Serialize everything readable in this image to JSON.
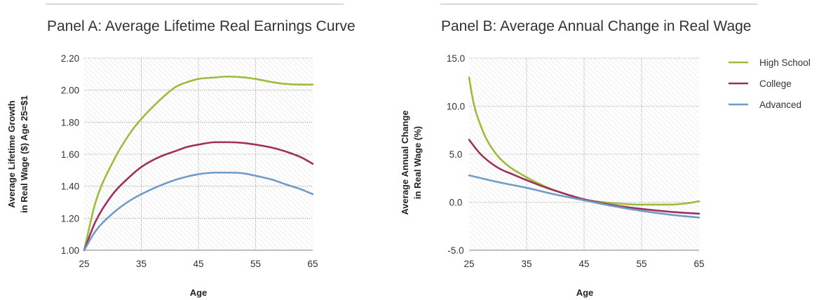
{
  "chart_data": [
    {
      "type": "line",
      "title": "Panel A: Average Lifetime Real Earnings Curve",
      "xlabel": "Age",
      "ylabel": [
        "Average  Lifetime Growth",
        "in Real Wage ($) Age 25=$1"
      ],
      "xlim": [
        25,
        65
      ],
      "ylim": [
        1.0,
        2.2
      ],
      "x_ticks": [
        25,
        35,
        45,
        55,
        65
      ],
      "x_tick_labels": [
        "25",
        "35",
        "45",
        "55",
        "65"
      ],
      "y_ticks": [
        1.0,
        1.2,
        1.4,
        1.6,
        1.8,
        2.0,
        2.2
      ],
      "y_tick_labels": [
        "1.00",
        "1.20",
        "1.40",
        "1.60",
        "1.80",
        "2.00",
        "2.20"
      ],
      "grid": true,
      "series": [
        {
          "name": "High School",
          "color": "#9cbc3c",
          "x": [
            25,
            27,
            30,
            33,
            35,
            38,
            41,
            43,
            45,
            48,
            50,
            53,
            55,
            58,
            60,
            63,
            65
          ],
          "y": [
            1.0,
            1.3,
            1.55,
            1.73,
            1.82,
            1.93,
            2.02,
            2.05,
            2.07,
            2.08,
            2.085,
            2.08,
            2.07,
            2.05,
            2.04,
            2.035,
            2.035
          ]
        },
        {
          "name": "College",
          "color": "#a02f5e",
          "x": [
            25,
            27,
            30,
            33,
            35,
            38,
            41,
            43,
            45,
            48,
            50,
            53,
            55,
            58,
            60,
            63,
            65
          ],
          "y": [
            1.0,
            1.18,
            1.35,
            1.46,
            1.52,
            1.58,
            1.62,
            1.645,
            1.66,
            1.675,
            1.675,
            1.67,
            1.66,
            1.64,
            1.62,
            1.58,
            1.54
          ]
        },
        {
          "name": "Advanced",
          "color": "#6f9cc8",
          "x": [
            25,
            27,
            30,
            33,
            35,
            38,
            41,
            43,
            45,
            48,
            50,
            53,
            55,
            58,
            60,
            63,
            65
          ],
          "y": [
            1.0,
            1.12,
            1.23,
            1.31,
            1.35,
            1.4,
            1.44,
            1.46,
            1.475,
            1.485,
            1.485,
            1.48,
            1.465,
            1.44,
            1.415,
            1.38,
            1.35
          ]
        }
      ]
    },
    {
      "type": "line",
      "title": "Panel B: Average Annual Change in Real Wage",
      "xlabel": "Age",
      "ylabel": [
        "Average Annual Change",
        "in Real Wage (%)"
      ],
      "xlim": [
        25,
        65
      ],
      "ylim": [
        -5.0,
        15.0
      ],
      "x_ticks": [
        25,
        35,
        45,
        55,
        65
      ],
      "x_tick_labels": [
        "25",
        "35",
        "45",
        "55",
        "65"
      ],
      "y_ticks": [
        -5.0,
        0.0,
        5.0,
        10.0,
        15.0
      ],
      "y_tick_labels": [
        "-5.0",
        "0.0",
        "5.0",
        "10.0",
        "15.0"
      ],
      "grid": true,
      "legend": "top-right",
      "series": [
        {
          "name": "High School",
          "color": "#9cbc3c",
          "x": [
            25,
            25.5,
            26,
            27,
            28,
            30,
            32,
            35,
            38,
            41,
            45,
            50,
            55,
            60,
            63,
            65
          ],
          "y": [
            13.0,
            11.2,
            9.8,
            8.0,
            6.6,
            4.8,
            3.7,
            2.6,
            1.7,
            1.0,
            0.3,
            -0.1,
            -0.25,
            -0.25,
            -0.1,
            0.1
          ]
        },
        {
          "name": "College",
          "color": "#a02f5e",
          "x": [
            25,
            27,
            30,
            33,
            35,
            38,
            41,
            45,
            50,
            55,
            60,
            65
          ],
          "y": [
            6.5,
            5.0,
            3.6,
            2.8,
            2.3,
            1.6,
            1.0,
            0.3,
            -0.3,
            -0.7,
            -1.0,
            -1.2
          ]
        },
        {
          "name": "Advanced",
          "color": "#6f9cc8",
          "x": [
            25,
            30,
            35,
            40,
            45,
            50,
            55,
            60,
            65
          ],
          "y": [
            2.8,
            2.1,
            1.5,
            0.8,
            0.2,
            -0.4,
            -0.9,
            -1.3,
            -1.6
          ]
        }
      ]
    }
  ]
}
